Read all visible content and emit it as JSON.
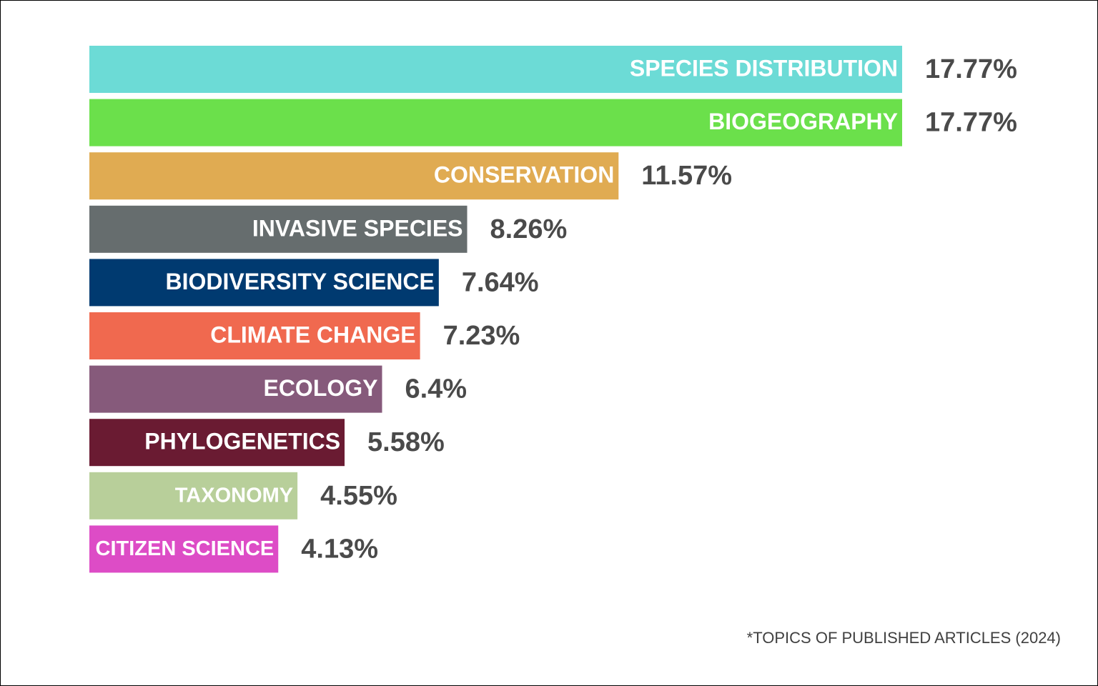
{
  "chart_data": {
    "type": "bar",
    "orientation": "horizontal",
    "categories": [
      "SPECIES DISTRIBUTION",
      "BIOGEOGRAPHY",
      "CONSERVATION",
      "INVASIVE SPECIES",
      "BIODIVERSITY SCIENCE",
      "CLIMATE CHANGE",
      "ECOLOGY",
      "PHYLOGENETICS",
      "TAXONOMY",
      "CITIZEN SCIENCE"
    ],
    "values": [
      17.77,
      17.77,
      11.57,
      8.26,
      7.64,
      7.23,
      6.4,
      5.58,
      4.55,
      4.13
    ],
    "value_labels": [
      "17.77%",
      "17.77%",
      "11.57%",
      "8.26%",
      "7.64%",
      "7.23%",
      "6.4%",
      "5.58%",
      "4.55%",
      "4.13%"
    ],
    "colors": [
      "#6cdbd6",
      "#6be04b",
      "#e0ab52",
      "#666d6e",
      "#003a70",
      "#f0694f",
      "#865a7b",
      "#6a1b32",
      "#b8cf9a",
      "#dd4cc6"
    ],
    "title": "",
    "xlabel": "",
    "ylabel": "",
    "grid": false,
    "legend": "none"
  },
  "footnote": "*TOPICS OF PUBLISHED ARTICLES (2024)"
}
